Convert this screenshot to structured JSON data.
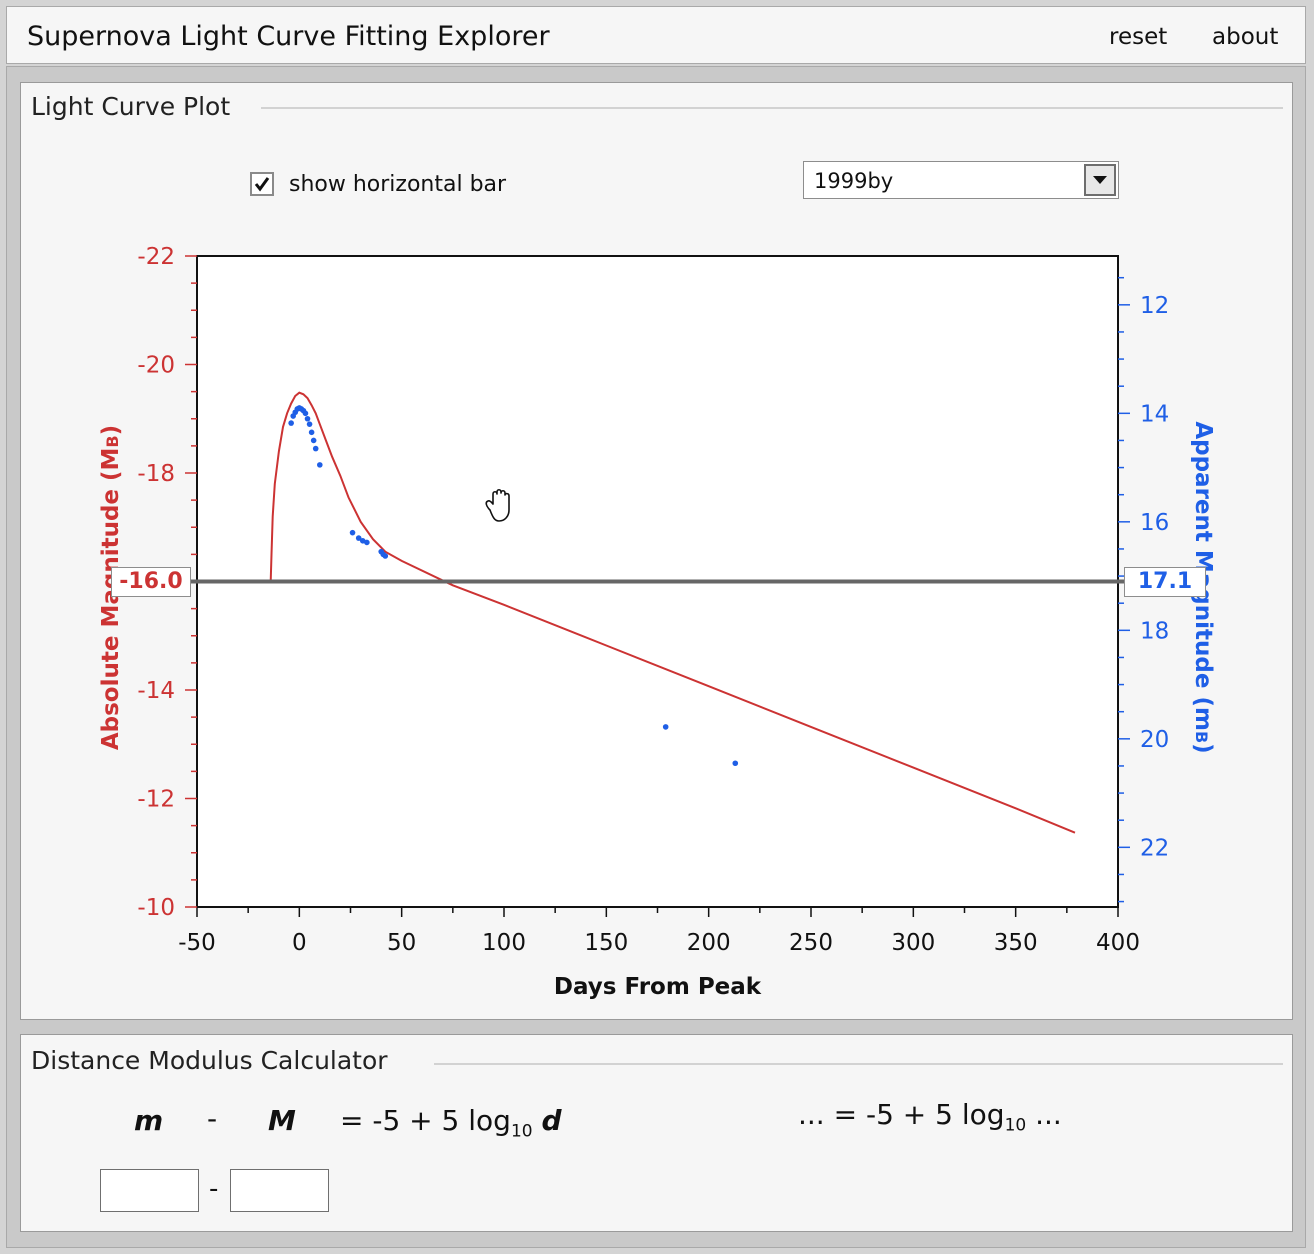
{
  "app": {
    "title": "Supernova Light Curve Fitting Explorer",
    "menu": {
      "reset": "reset",
      "about": "about"
    }
  },
  "light_curve_panel": {
    "title": "Light Curve Plot",
    "show_bar_label": "show horizontal bar",
    "show_bar_checked": true,
    "supernova_select": {
      "value": "1999by"
    },
    "absolute_readout": "-16.0",
    "apparent_readout": "17.1",
    "cursor_icon": "open-hand-grab-icon"
  },
  "chart_data": {
    "type": "scatter",
    "xlabel": "Days From Peak",
    "ylabel_left": "Absolute Magnitude (M",
    "ylabel_left_sub": "B",
    "ylabel_right": "Apparent Magnitude (m",
    "ylabel_right_sub": "B",
    "xlim": [
      -50,
      400
    ],
    "x_ticks": [
      "-50",
      "0",
      "50",
      "100",
      "150",
      "200",
      "250",
      "300",
      "350",
      "400"
    ],
    "ylim_left": [
      -22,
      -10
    ],
    "y_ticks_left": [
      "-22",
      "-20",
      "-18",
      "-14",
      "-12",
      "-10"
    ],
    "ylim_right": [
      11.1,
      23.1
    ],
    "y_ticks_right": [
      "12",
      "14",
      "16",
      "18",
      "20",
      "22"
    ],
    "horizontal_bar_absolute": -16.0,
    "colors": {
      "left_axis": "#cc3333",
      "right_axis": "#1f5fe6",
      "model": "#cc3333",
      "points": "#1f5fe6",
      "bar": "#666666"
    },
    "series": [
      {
        "type": "line",
        "x": [
          -14,
          -13.6,
          -13,
          -12,
          -10,
          -8,
          -6,
          -4,
          -2,
          0,
          2,
          4,
          6,
          8,
          10,
          13,
          16,
          20,
          24,
          30,
          36,
          42,
          50,
          75,
          100,
          150,
          200,
          250,
          300,
          350,
          379
        ],
        "y": [
          -16.0,
          -16.5,
          -17.2,
          -17.8,
          -18.4,
          -18.85,
          -19.1,
          -19.28,
          -19.42,
          -19.48,
          -19.45,
          -19.38,
          -19.25,
          -19.1,
          -18.9,
          -18.6,
          -18.3,
          -17.95,
          -17.55,
          -17.1,
          -16.78,
          -16.55,
          -16.38,
          -15.93,
          -15.57,
          -14.82,
          -14.07,
          -13.32,
          -12.57,
          -11.82,
          -11.37
        ]
      },
      {
        "type": "scatter",
        "x": [
          -4,
          -3,
          -2,
          -1,
          0,
          1,
          2,
          3,
          4,
          5,
          6,
          7,
          8,
          10,
          26,
          29,
          31,
          33,
          40,
          41,
          42,
          179,
          213
        ],
        "y": [
          -18.92,
          -19.05,
          -19.12,
          -19.18,
          -19.2,
          -19.18,
          -19.15,
          -19.1,
          -19.0,
          -18.9,
          -18.75,
          -18.6,
          -18.45,
          -18.15,
          -16.9,
          -16.8,
          -16.75,
          -16.72,
          -16.55,
          -16.5,
          -16.47,
          -13.32,
          -12.65
        ]
      }
    ]
  },
  "calculator_panel": {
    "title": "Distance Modulus Calculator",
    "formula": {
      "m": "m",
      "minus": "-",
      "M": "M",
      "rhs_prefix": "= -5 + 5 log",
      "sub": "10",
      "d": "d"
    },
    "evaluated": {
      "lead": "...",
      "rhs_prefix": "= -5 + 5 log",
      "sub": "10",
      "trail": "..."
    },
    "minus_between_inputs": "-",
    "m_input_value": "",
    "M_input_value": ""
  }
}
